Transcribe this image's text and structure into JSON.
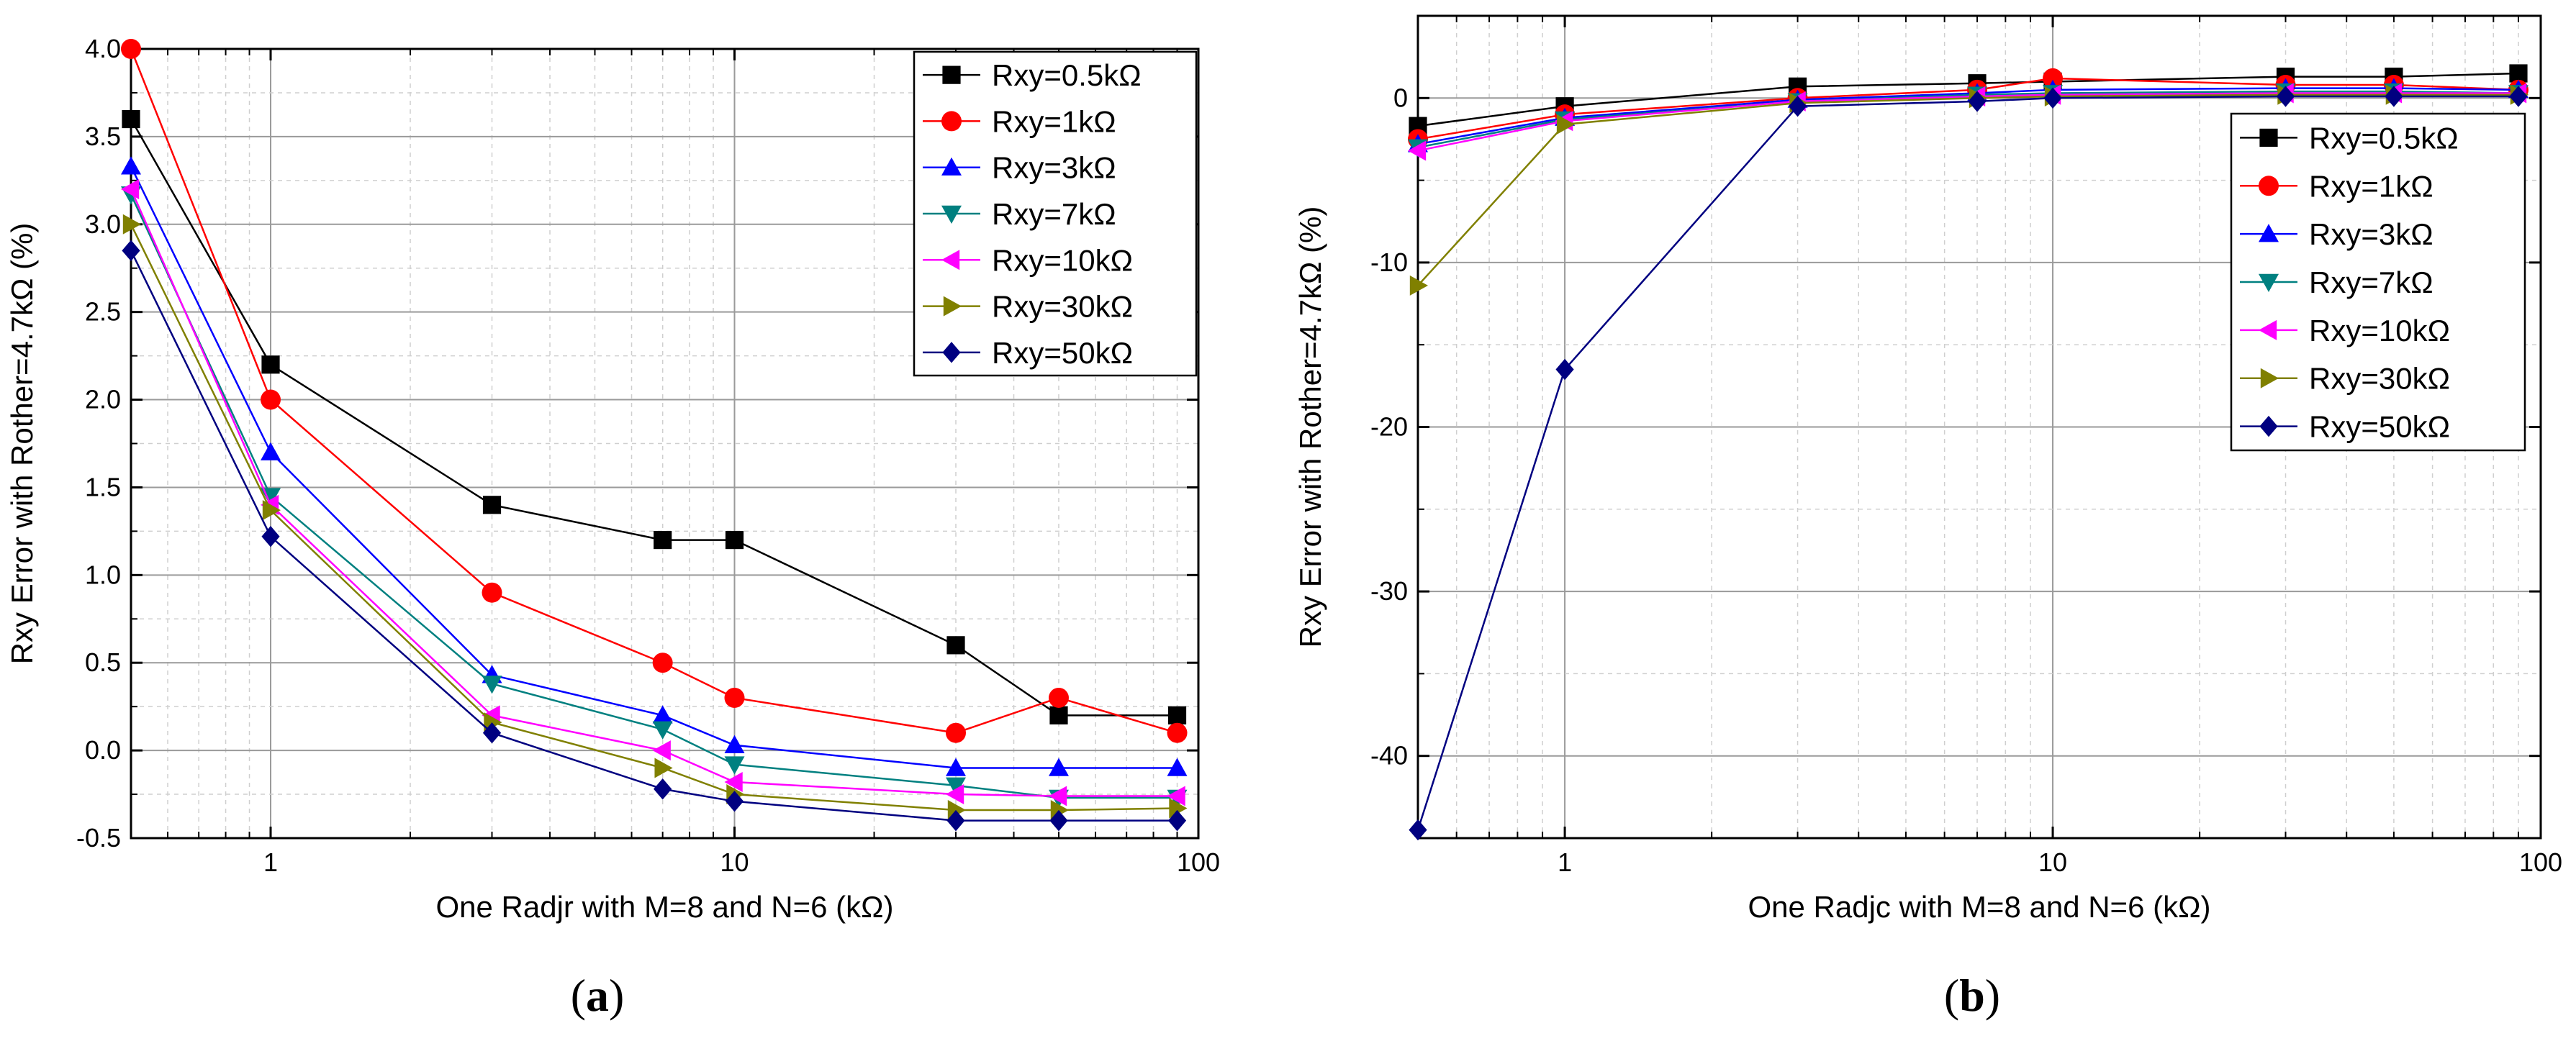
{
  "chart_data": [
    {
      "type": "line",
      "caption": {
        "open": "(",
        "letter": "a",
        "close": ")"
      },
      "xlabel": "One Radjr with M=8 and N=6 (kΩ)",
      "ylabel": "Rxy Error with Rother=4.7kΩ (%)",
      "xscale": "log",
      "xlim": [
        0.5,
        100
      ],
      "ylim": [
        -0.5,
        4.0
      ],
      "yticks": [
        -0.5,
        0.0,
        0.5,
        1.0,
        1.5,
        2.0,
        2.5,
        3.0,
        3.5,
        4.0
      ],
      "ytick_labels": [
        "-0.5",
        "0.0",
        "0.5",
        "1.0",
        "1.5",
        "2.0",
        "2.5",
        "3.0",
        "3.5",
        "4.0"
      ],
      "xticks": [
        1,
        10,
        100
      ],
      "xtick_labels": [
        "1",
        "10",
        "100"
      ],
      "grid": true,
      "legend_position": "top-right",
      "x": [
        0.5,
        1,
        3,
        7,
        10,
        30,
        50,
        90
      ],
      "series": [
        {
          "name": "Rxy=0.5kΩ",
          "color": "#000000",
          "marker": "square",
          "values": [
            3.6,
            2.2,
            1.4,
            1.2,
            1.2,
            0.6,
            0.2,
            0.2
          ]
        },
        {
          "name": "Rxy=1kΩ",
          "color": "#ff0000",
          "marker": "circle",
          "values": [
            4.0,
            2.0,
            0.9,
            0.5,
            0.3,
            0.1,
            0.3,
            0.1
          ]
        },
        {
          "name": "Rxy=3kΩ",
          "color": "#0000ff",
          "marker": "triangle-up",
          "values": [
            3.33,
            1.7,
            0.43,
            0.2,
            0.03,
            -0.1,
            -0.1,
            -0.1
          ]
        },
        {
          "name": "Rxy=7kΩ",
          "color": "#008080",
          "marker": "triangle-down",
          "values": [
            3.17,
            1.45,
            0.38,
            0.12,
            -0.08,
            -0.2,
            -0.27,
            -0.27
          ]
        },
        {
          "name": "Rxy=10kΩ",
          "color": "#ff00ff",
          "marker": "triangle-left",
          "values": [
            3.2,
            1.4,
            0.2,
            0.0,
            -0.18,
            -0.25,
            -0.26,
            -0.26
          ]
        },
        {
          "name": "Rxy=30kΩ",
          "color": "#808000",
          "marker": "triangle-right",
          "values": [
            3.0,
            1.37,
            0.16,
            -0.1,
            -0.25,
            -0.34,
            -0.34,
            -0.33
          ]
        },
        {
          "name": "Rxy=50kΩ",
          "color": "#000080",
          "marker": "diamond",
          "values": [
            2.85,
            1.22,
            0.1,
            -0.22,
            -0.29,
            -0.4,
            -0.4,
            -0.4
          ]
        }
      ]
    },
    {
      "type": "line",
      "caption": {
        "open": "(",
        "letter": "b",
        "close": ")"
      },
      "xlabel": "One Radjc with M=8 and N=6 (kΩ)",
      "ylabel": "Rxy Error with Rother=4.7kΩ (%)",
      "xscale": "log",
      "xlim": [
        0.5,
        100
      ],
      "ylim": [
        -45,
        5
      ],
      "yticks": [
        -40,
        -30,
        -20,
        -10,
        0
      ],
      "ytick_labels": [
        "-40",
        "-30",
        "-20",
        "-10",
        "0"
      ],
      "xticks": [
        1,
        10,
        100
      ],
      "xtick_labels": [
        "1",
        "10",
        "100"
      ],
      "grid": true,
      "legend_position": "top-right",
      "x": [
        0.5,
        1,
        3,
        7,
        10,
        30,
        50,
        90
      ],
      "series": [
        {
          "name": "Rxy=0.5kΩ",
          "color": "#000000",
          "marker": "square",
          "values": [
            -1.7,
            -0.5,
            0.7,
            0.9,
            1.0,
            1.3,
            1.3,
            1.5
          ]
        },
        {
          "name": "Rxy=1kΩ",
          "color": "#ff0000",
          "marker": "circle",
          "values": [
            -2.5,
            -1.0,
            0.0,
            0.5,
            1.2,
            0.8,
            0.8,
            0.5
          ]
        },
        {
          "name": "Rxy=3kΩ",
          "color": "#0000ff",
          "marker": "triangle-up",
          "values": [
            -2.8,
            -1.2,
            -0.1,
            0.3,
            0.5,
            0.6,
            0.6,
            0.5
          ]
        },
        {
          "name": "Rxy=7kΩ",
          "color": "#008080",
          "marker": "triangle-down",
          "values": [
            -3.0,
            -1.3,
            -0.2,
            0.2,
            0.3,
            0.4,
            0.4,
            0.3
          ]
        },
        {
          "name": "Rxy=10kΩ",
          "color": "#ff00ff",
          "marker": "triangle-left",
          "values": [
            -3.2,
            -1.4,
            -0.2,
            0.1,
            0.2,
            0.3,
            0.3,
            0.3
          ]
        },
        {
          "name": "Rxy=30kΩ",
          "color": "#808000",
          "marker": "triangle-right",
          "values": [
            -11.4,
            -1.6,
            -0.3,
            0.0,
            0.1,
            0.2,
            0.2,
            0.2
          ]
        },
        {
          "name": "Rxy=50kΩ",
          "color": "#000080",
          "marker": "diamond",
          "values": [
            -44.5,
            -16.5,
            -0.5,
            -0.2,
            0.0,
            0.1,
            0.1,
            0.1
          ]
        }
      ]
    }
  ]
}
